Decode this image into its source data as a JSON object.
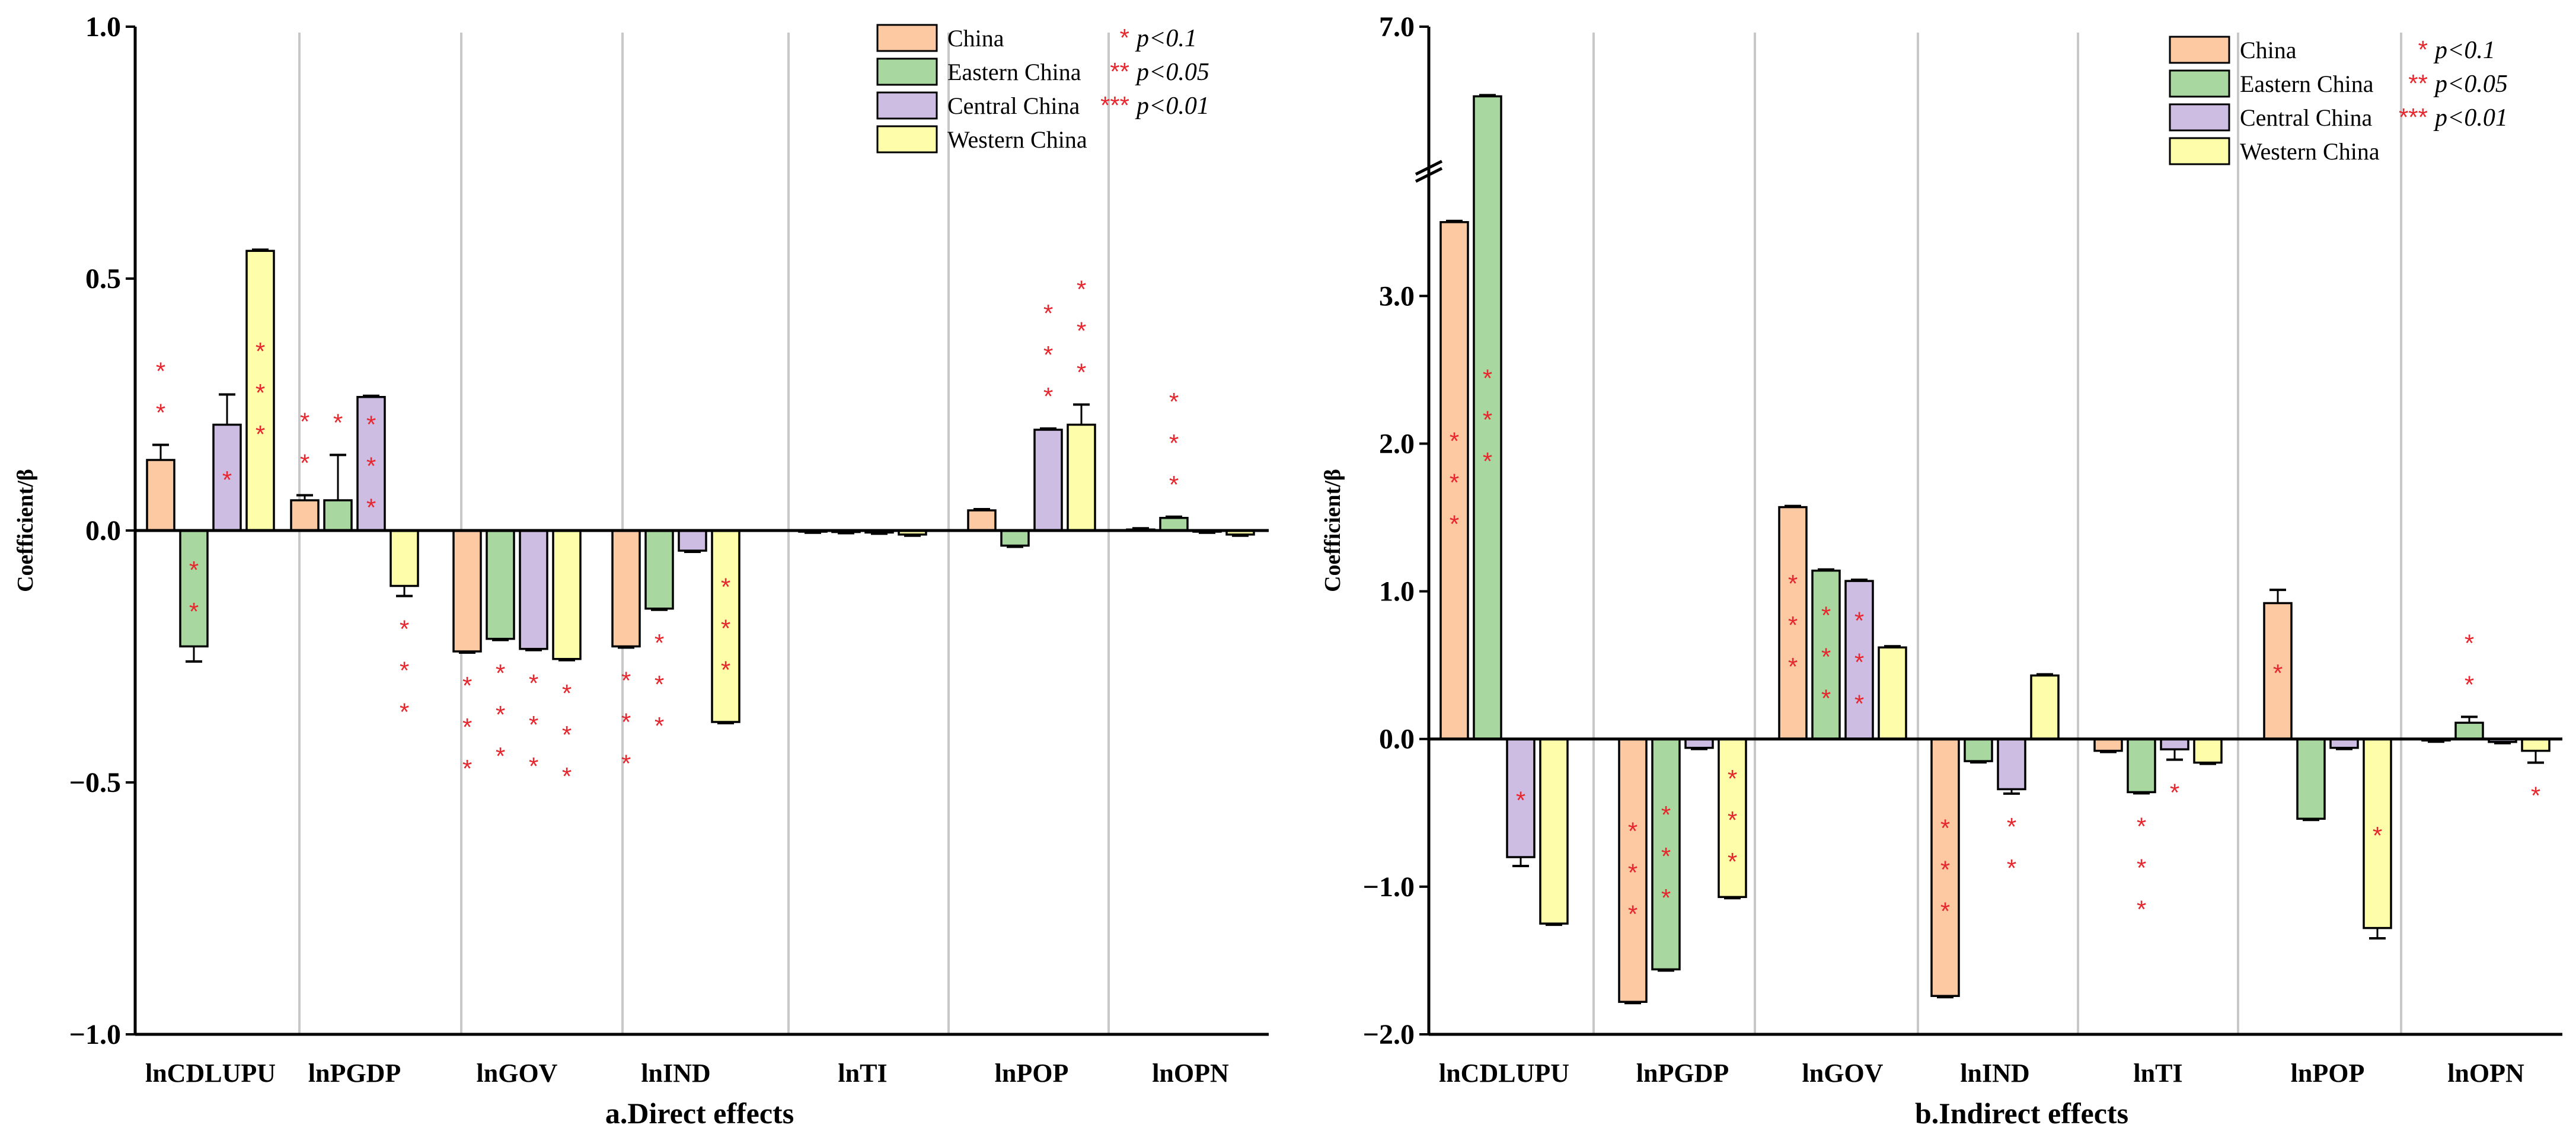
{
  "colors": {
    "China": "#fcc9a3",
    "Eastern China": "#a8d8a0",
    "Central China": "#cdbde3",
    "Western China": "#fdfdaa",
    "star": "#e8262e",
    "grid": "#c8c8c8"
  },
  "chart_data": [
    {
      "type": "bar",
      "title": "a.Direct effects",
      "xlabel": "",
      "ylabel": "Coefficient/β",
      "ylim": [
        -1.0,
        1.0
      ],
      "yticks": [
        -1.0,
        -0.5,
        0.0,
        0.5,
        1.0
      ],
      "ytick_labels": [
        "−1.0",
        "−0.5",
        "0.0",
        "0.5",
        "1.0"
      ],
      "axis_break": null,
      "grid": "vertical separators",
      "legend": {
        "position": "top-right",
        "entries": [
          "China",
          "Eastern China",
          "Central China",
          "Western China"
        ],
        "significance": [
          {
            "marker": "*",
            "text": "p<0.1"
          },
          {
            "marker": "**",
            "text": "p<0.05"
          },
          {
            "marker": "***",
            "text": "p<0.01"
          }
        ]
      },
      "categories": [
        "lnCDLUPU",
        "lnPGDP",
        "lnGOV",
        "lnIND",
        "lnTI",
        "lnPOP",
        "lnOPN"
      ],
      "series": [
        {
          "name": "China",
          "values": [
            0.14,
            0.06,
            -0.24,
            -0.23,
            -0.002,
            0.04,
            0.002
          ],
          "errors": [
            0.03,
            0.01,
            0.0,
            0.0,
            0.0,
            0.0,
            0.0
          ],
          "stars": [
            2,
            2,
            3,
            3,
            0,
            0,
            0
          ]
        },
        {
          "name": "Eastern China",
          "values": [
            -0.23,
            0.06,
            -0.215,
            -0.155,
            -0.003,
            -0.03,
            0.025
          ],
          "errors": [
            0.03,
            0.09,
            0.0,
            0.0,
            0.0,
            0.0,
            0.0
          ],
          "stars": [
            2,
            1,
            3,
            3,
            0,
            0,
            3
          ]
        },
        {
          "name": "Central China",
          "values": [
            0.21,
            0.265,
            -0.235,
            -0.04,
            -0.004,
            0.2,
            -0.002
          ],
          "errors": [
            0.06,
            0.0,
            0.0,
            0.0,
            0.0,
            0.0,
            0.0
          ],
          "stars": [
            1,
            3,
            3,
            0,
            0,
            3,
            0
          ]
        },
        {
          "name": "Western China",
          "values": [
            0.555,
            -0.11,
            -0.255,
            -0.38,
            -0.008,
            0.21,
            -0.008
          ],
          "errors": [
            0.0,
            0.02,
            0.0,
            0.0,
            0.0,
            0.04,
            0.0
          ],
          "stars": [
            3,
            3,
            3,
            3,
            0,
            3,
            0
          ]
        }
      ]
    },
    {
      "type": "bar",
      "title": "b.Indirect effects",
      "xlabel": "",
      "ylabel": "Coefficient/β",
      "ylim": [
        -2.0,
        7.0
      ],
      "yticks": [
        -2.0,
        -1.0,
        0.0,
        1.0,
        2.0,
        3.0,
        7.0
      ],
      "ytick_labels": [
        "−2.0",
        "−1.0",
        "0.0",
        "1.0",
        "2.0",
        "3.0",
        "7.0"
      ],
      "axis_break": {
        "lower": 3.8,
        "upper": 6.0,
        "upper_top": 7.0
      },
      "grid": "vertical separators",
      "legend": {
        "position": "top-right",
        "entries": [
          "China",
          "Eastern China",
          "Central China",
          "Western China"
        ],
        "significance": [
          {
            "marker": "*",
            "text": "p<0.1"
          },
          {
            "marker": "**",
            "text": "p<0.05"
          },
          {
            "marker": "***",
            "text": "p<0.01"
          }
        ]
      },
      "categories": [
        "lnCDLUPU",
        "lnPGDP",
        "lnGOV",
        "lnIND",
        "lnTI",
        "lnPOP",
        "lnOPN"
      ],
      "series": [
        {
          "name": "China",
          "values": [
            3.5,
            -1.78,
            1.57,
            -1.74,
            -0.08,
            0.92,
            -0.01
          ],
          "errors": [
            0.0,
            0.0,
            0.0,
            0.0,
            0.0,
            0.09,
            0.0
          ],
          "stars": [
            3,
            3,
            3,
            3,
            0,
            1,
            0
          ]
        },
        {
          "name": "Eastern China",
          "values": [
            6.5,
            -1.56,
            1.14,
            -0.15,
            -0.36,
            -0.54,
            0.11
          ],
          "errors": [
            0.0,
            0.0,
            0.0,
            0.0,
            0.0,
            0.0,
            0.04
          ],
          "stars": [
            3,
            3,
            3,
            0,
            3,
            0,
            2
          ]
        },
        {
          "name": "Central China",
          "values": [
            -0.8,
            -0.06,
            1.07,
            -0.34,
            -0.07,
            -0.06,
            -0.02
          ],
          "errors": [
            0.06,
            0.0,
            0.0,
            0.03,
            0.07,
            0.0,
            0.0
          ],
          "stars": [
            1,
            0,
            3,
            2,
            1,
            0,
            0
          ]
        },
        {
          "name": "Western China",
          "values": [
            -1.25,
            -1.07,
            0.62,
            0.43,
            -0.16,
            -1.28,
            -0.08
          ],
          "errors": [
            0.0,
            0.0,
            0.0,
            0.0,
            0.0,
            0.07,
            0.08
          ],
          "stars": [
            0,
            3,
            0,
            0,
            0,
            1,
            1
          ]
        }
      ]
    }
  ]
}
